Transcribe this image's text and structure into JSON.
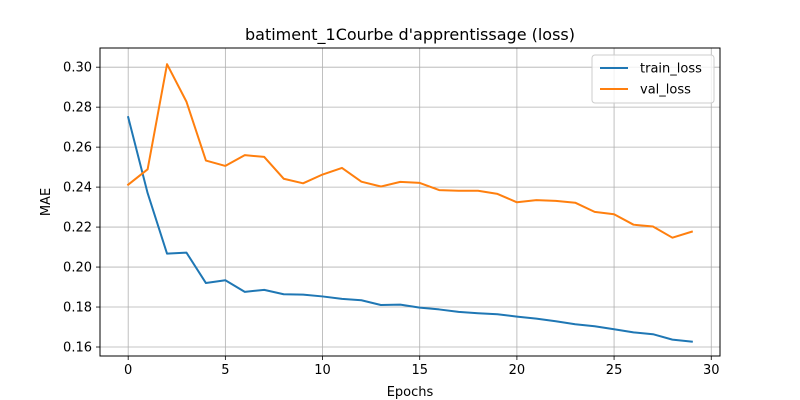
{
  "chart_data": {
    "type": "line",
    "title": "batiment_1Courbe d'apprentissage (loss)",
    "xlabel": "Epochs",
    "ylabel": "MAE",
    "xlim": [
      -1.45,
      30.45
    ],
    "ylim": [
      0.1555,
      0.3096
    ],
    "xticks": [
      0,
      5,
      10,
      15,
      20,
      25,
      30
    ],
    "yticks": [
      0.16,
      0.18,
      0.2,
      0.22,
      0.24,
      0.26,
      0.28,
      0.3
    ],
    "ytick_labels": [
      "0.16",
      "0.18",
      "0.20",
      "0.22",
      "0.24",
      "0.26",
      "0.28",
      "0.30"
    ],
    "grid": true,
    "legend_position": "top-right",
    "x": [
      0,
      1,
      2,
      3,
      4,
      5,
      6,
      7,
      8,
      9,
      10,
      11,
      12,
      13,
      14,
      15,
      16,
      17,
      18,
      19,
      20,
      21,
      22,
      23,
      24,
      25,
      26,
      27,
      28,
      29
    ],
    "series": [
      {
        "name": "train_loss",
        "color": "#1f77b4",
        "values": [
          0.275,
          0.237,
          0.2067,
          0.2072,
          0.192,
          0.1934,
          0.1876,
          0.1886,
          0.1864,
          0.1862,
          0.1853,
          0.1841,
          0.1834,
          0.181,
          0.1812,
          0.1797,
          0.1788,
          0.1776,
          0.1769,
          0.1764,
          0.1752,
          0.1742,
          0.1729,
          0.1714,
          0.1704,
          0.1689,
          0.1673,
          0.1664,
          0.1637,
          0.1627
        ]
      },
      {
        "name": "val_loss",
        "color": "#ff7f0e",
        "values": [
          0.2412,
          0.2489,
          0.3015,
          0.2827,
          0.2533,
          0.2506,
          0.256,
          0.2551,
          0.2442,
          0.2419,
          0.2463,
          0.2496,
          0.2427,
          0.2403,
          0.2426,
          0.2421,
          0.2385,
          0.2382,
          0.2382,
          0.2366,
          0.2324,
          0.2335,
          0.2331,
          0.2322,
          0.2276,
          0.2264,
          0.2212,
          0.2203,
          0.2147,
          0.2177
        ]
      }
    ]
  }
}
